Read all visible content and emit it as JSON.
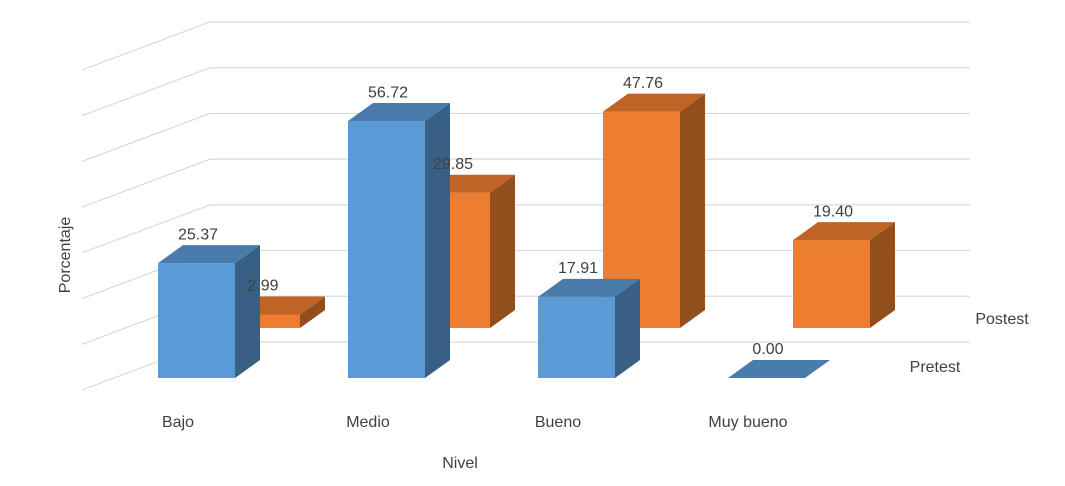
{
  "chart_data": {
    "type": "bar3d",
    "x_label": "Nivel",
    "y_label": "Porcentaje",
    "categories": [
      "Bajo",
      "Medio",
      "Bueno",
      "Muy bueno"
    ],
    "series": [
      {
        "name": "Pretest",
        "color": "#5b9bd5",
        "values": [
          25.37,
          56.72,
          17.91,
          0
        ],
        "value_labels": [
          "25.37",
          "56.72",
          "17.91",
          "0.00"
        ]
      },
      {
        "name": "Postest",
        "color": "#ed7d31",
        "values": [
          2.99,
          29.85,
          47.76,
          19.4
        ],
        "value_labels": [
          "2.99",
          "29.85",
          "47.76",
          "19.40"
        ]
      }
    ],
    "ylim": [
      0,
      70
    ],
    "yticks": [
      0,
      10,
      20,
      30,
      40,
      50,
      60,
      70
    ],
    "grid": true
  }
}
